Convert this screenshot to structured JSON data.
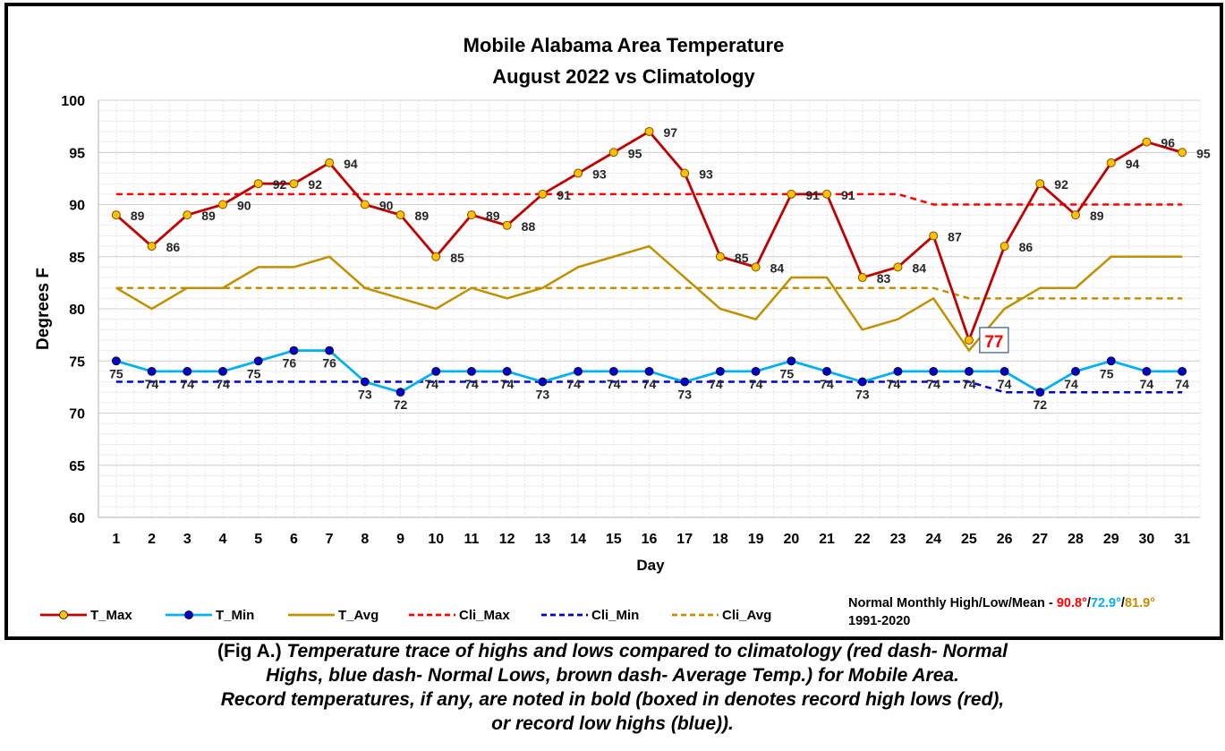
{
  "chart_data": {
    "type": "line",
    "title": [
      "Mobile Alabama Area Temperature",
      "August 2022 vs Climatology"
    ],
    "xlabel": "Day",
    "ylabel": "Degrees F",
    "ylim": [
      60,
      100
    ],
    "yticks": [
      60,
      65,
      70,
      75,
      80,
      85,
      90,
      95,
      100
    ],
    "grid": true,
    "legend_position": "bottom",
    "x": [
      1,
      2,
      3,
      4,
      5,
      6,
      7,
      8,
      9,
      10,
      11,
      12,
      13,
      14,
      15,
      16,
      17,
      18,
      19,
      20,
      21,
      22,
      23,
      24,
      25,
      26,
      27,
      28,
      29,
      30,
      31
    ],
    "series": [
      {
        "name": "T_Max",
        "color": "#C00000",
        "marker": "circle",
        "marker_fill": "#FFC000",
        "style": "solid",
        "values": [
          89,
          86,
          89,
          90,
          92,
          92,
          94,
          90,
          89,
          85,
          89,
          88,
          91,
          93,
          95,
          97,
          93,
          85,
          84,
          91,
          91,
          83,
          84,
          87,
          77,
          86,
          92,
          89,
          94,
          96,
          95
        ]
      },
      {
        "name": "T_Min",
        "color": "#00B0F0",
        "marker": "circle",
        "marker_fill": "#0000CC",
        "style": "solid",
        "values": [
          75,
          74,
          74,
          74,
          75,
          76,
          76,
          73,
          72,
          74,
          74,
          74,
          73,
          74,
          74,
          74,
          73,
          74,
          74,
          75,
          74,
          73,
          74,
          74,
          74,
          74,
          72,
          74,
          75,
          74,
          74
        ]
      },
      {
        "name": "T_Avg",
        "color": "#BF9000",
        "style": "solid",
        "values": [
          82,
          80,
          82,
          82,
          84,
          84,
          85,
          82,
          81,
          80,
          82,
          81,
          82,
          84,
          85,
          86,
          83,
          80,
          79,
          83,
          83,
          78,
          79,
          81,
          76,
          80,
          82,
          82,
          85,
          85,
          85
        ]
      },
      {
        "name": "Cli_Max",
        "color": "#FF0000",
        "style": "dash",
        "values": [
          91,
          91,
          91,
          91,
          91,
          91,
          91,
          91,
          91,
          91,
          91,
          91,
          91,
          91,
          91,
          91,
          91,
          91,
          91,
          91,
          91,
          91,
          91,
          90,
          90,
          90,
          90,
          90,
          90,
          90,
          90
        ]
      },
      {
        "name": "Cli_Min",
        "color": "#0000CC",
        "style": "dash",
        "values": [
          73,
          73,
          73,
          73,
          73,
          73,
          73,
          73,
          73,
          73,
          73,
          73,
          73,
          73,
          73,
          73,
          73,
          73,
          73,
          73,
          73,
          73,
          73,
          73,
          73,
          72,
          72,
          72,
          72,
          72,
          72
        ]
      },
      {
        "name": "Cli_Avg",
        "color": "#BF9000",
        "style": "dash",
        "values": [
          82,
          82,
          82,
          82,
          82,
          82,
          82,
          82,
          82,
          82,
          82,
          82,
          82,
          82,
          82,
          82,
          82,
          82,
          82,
          82,
          82,
          82,
          82,
          82,
          81,
          81,
          81,
          81,
          81,
          81,
          81
        ]
      }
    ],
    "annotation": {
      "day": 25,
      "text": "77",
      "color": "#FF0000",
      "boxed": true
    },
    "normals": {
      "label": "Normal Monthly High/Low/Mean - ",
      "high": "90.8°",
      "low": "72.9°",
      "mean": "81.9°",
      "sep": "/",
      "high_color": "#FF0000",
      "low_color": "#00B0F0",
      "mean_color": "#BF9000",
      "period": "1991-2020"
    }
  },
  "caption": {
    "prefix": "(Fig A.) ",
    "line1": "Temperature trace of highs and lows compared to climatology (red dash- Normal",
    "line2": "Highs, blue dash- Normal Lows, brown dash- Average Temp.) for Mobile Area.",
    "line3": "Record temperatures, if any, are noted in bold (boxed in denotes record high lows (red),",
    "line4": "or record low highs (blue))."
  }
}
